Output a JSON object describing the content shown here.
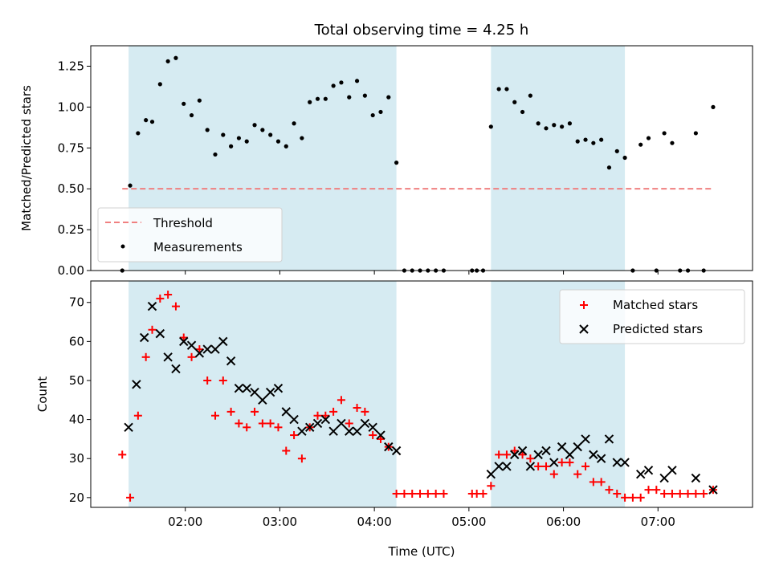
{
  "chart_data": [
    {
      "type": "scatter",
      "title": "Total observing time = 4.25 h",
      "ylabel": "Matched/Predicted stars",
      "xlabel": "",
      "ylim": [
        0,
        1.375
      ],
      "yticks": [
        0,
        0.25,
        0.5,
        0.75,
        1.0,
        1.25
      ],
      "ytick_labels": [
        "0.00",
        "0.25",
        "0.50",
        "0.75",
        "1.00",
        "1.25"
      ],
      "xticks": [
        "02:00",
        "03:00",
        "04:00",
        "05:00",
        "06:00",
        "07:00"
      ],
      "xtick_labels_visible": false,
      "legend": {
        "placement": "lower-left",
        "entries": [
          "Threshold",
          "Measurements"
        ]
      },
      "shaded_spans": [
        [
          "01:24",
          "04:14"
        ],
        [
          "05:14",
          "06:39"
        ]
      ],
      "threshold": {
        "name": "Threshold",
        "value": 0.5,
        "x_start": "01:20",
        "x_end": "07:35",
        "color": "#f08080"
      },
      "series": [
        {
          "name": "Measurements",
          "color": "#000000",
          "marker": "dot",
          "x": [
            "01:20",
            "01:25",
            "01:30",
            "01:35",
            "01:39",
            "01:44",
            "01:49",
            "01:54",
            "01:59",
            "02:04",
            "02:09",
            "02:14",
            "02:19",
            "02:24",
            "02:29",
            "02:34",
            "02:39",
            "02:44",
            "02:49",
            "02:54",
            "02:59",
            "03:04",
            "03:09",
            "03:14",
            "03:19",
            "03:24",
            "03:29",
            "03:34",
            "03:39",
            "03:44",
            "03:49",
            "03:54",
            "03:59",
            "04:04",
            "04:09",
            "04:14",
            "04:19",
            "04:24",
            "04:29",
            "04:34",
            "04:39",
            "04:44",
            "05:02",
            "05:05",
            "05:09",
            "05:14",
            "05:19",
            "05:24",
            "05:29",
            "05:34",
            "05:39",
            "05:44",
            "05:49",
            "05:54",
            "05:59",
            "06:04",
            "06:09",
            "06:14",
            "06:19",
            "06:24",
            "06:29",
            "06:34",
            "06:39",
            "06:44",
            "06:49",
            "06:54",
            "06:59",
            "07:04",
            "07:09",
            "07:14",
            "07:19",
            "07:24",
            "07:29",
            "07:35"
          ],
          "y": [
            0.0,
            0.52,
            0.84,
            0.92,
            0.91,
            1.14,
            1.28,
            1.3,
            1.02,
            0.95,
            1.04,
            0.86,
            0.71,
            0.83,
            0.76,
            0.81,
            0.79,
            0.89,
            0.86,
            0.83,
            0.79,
            0.76,
            0.9,
            0.81,
            1.03,
            1.05,
            1.05,
            1.13,
            1.15,
            1.06,
            1.16,
            1.07,
            0.95,
            0.97,
            1.06,
            0.66,
            0.0,
            0.0,
            0.0,
            0.0,
            0.0,
            0.0,
            0.0,
            0.0,
            0.0,
            0.88,
            1.11,
            1.11,
            1.03,
            0.97,
            1.07,
            0.9,
            0.87,
            0.89,
            0.88,
            0.9,
            0.79,
            0.8,
            0.78,
            0.8,
            0.63,
            0.73,
            0.69,
            0.0,
            0.77,
            0.81,
            0.0,
            0.84,
            0.78,
            0.0,
            0.0,
            0.84,
            0.0,
            1.0
          ]
        }
      ]
    },
    {
      "type": "scatter",
      "title": "",
      "ylabel": "Count",
      "xlabel": "Time (UTC)",
      "ylim": [
        17.5,
        75.5
      ],
      "yticks": [
        20,
        30,
        40,
        50,
        60,
        70
      ],
      "ytick_labels": [
        "20",
        "30",
        "40",
        "50",
        "60",
        "70"
      ],
      "xticks": [
        "02:00",
        "03:00",
        "04:00",
        "05:00",
        "06:00",
        "07:00"
      ],
      "xtick_labels": [
        "02:00",
        "03:00",
        "04:00",
        "05:00",
        "06:00",
        "07:00"
      ],
      "legend": {
        "placement": "upper-right",
        "entries": [
          "Matched stars",
          "Predicted stars"
        ]
      },
      "shaded_spans": [
        [
          "01:24",
          "04:14"
        ],
        [
          "05:14",
          "06:39"
        ]
      ],
      "series": [
        {
          "name": "Matched stars",
          "color": "#ff0000",
          "marker": "plus",
          "x": [
            "01:20",
            "01:25",
            "01:30",
            "01:35",
            "01:39",
            "01:44",
            "01:49",
            "01:54",
            "01:59",
            "02:04",
            "02:09",
            "02:14",
            "02:19",
            "02:24",
            "02:29",
            "02:34",
            "02:39",
            "02:44",
            "02:49",
            "02:54",
            "02:59",
            "03:04",
            "03:09",
            "03:14",
            "03:19",
            "03:24",
            "03:29",
            "03:34",
            "03:39",
            "03:44",
            "03:49",
            "03:54",
            "03:59",
            "04:04",
            "04:09",
            "04:14",
            "04:19",
            "04:24",
            "04:29",
            "04:34",
            "04:39",
            "04:44",
            "05:02",
            "05:05",
            "05:09",
            "05:14",
            "05:19",
            "05:24",
            "05:29",
            "05:34",
            "05:39",
            "05:44",
            "05:49",
            "05:54",
            "05:59",
            "06:04",
            "06:09",
            "06:14",
            "06:19",
            "06:24",
            "06:29",
            "06:34",
            "06:39",
            "06:44",
            "06:49",
            "06:54",
            "06:59",
            "07:04",
            "07:09",
            "07:14",
            "07:19",
            "07:24",
            "07:29",
            "07:35"
          ],
          "y": [
            31,
            20,
            41,
            56,
            63,
            71,
            72,
            69,
            61,
            56,
            58,
            50,
            41,
            50,
            42,
            39,
            38,
            42,
            39,
            39,
            38,
            32,
            36,
            30,
            38,
            41,
            41,
            42,
            45,
            39,
            43,
            42,
            36,
            35,
            33,
            21,
            21,
            21,
            21,
            21,
            21,
            21,
            21,
            21,
            21,
            23,
            31,
            31,
            32,
            31,
            30,
            28,
            28,
            26,
            29,
            29,
            26,
            28,
            24,
            24,
            22,
            21,
            20,
            20,
            20,
            22,
            22,
            21,
            21,
            21,
            21,
            21,
            21,
            22
          ]
        },
        {
          "name": "Predicted stars",
          "color": "#000000",
          "marker": "x",
          "x": [
            "01:24",
            "01:29",
            "01:34",
            "01:39",
            "01:44",
            "01:49",
            "01:54",
            "01:59",
            "02:04",
            "02:09",
            "02:14",
            "02:19",
            "02:24",
            "02:29",
            "02:34",
            "02:39",
            "02:44",
            "02:49",
            "02:54",
            "02:59",
            "03:04",
            "03:09",
            "03:14",
            "03:19",
            "03:24",
            "03:29",
            "03:34",
            "03:39",
            "03:44",
            "03:49",
            "03:54",
            "03:59",
            "04:04",
            "04:09",
            "04:14",
            "05:14",
            "05:19",
            "05:24",
            "05:29",
            "05:34",
            "05:39",
            "05:44",
            "05:49",
            "05:54",
            "05:59",
            "06:04",
            "06:09",
            "06:14",
            "06:19",
            "06:24",
            "06:29",
            "06:34",
            "06:39",
            "06:49",
            "06:54",
            "07:04",
            "07:09",
            "07:24",
            "07:35"
          ],
          "y": [
            38,
            49,
            61,
            69,
            62,
            56,
            53,
            60,
            59,
            57,
            58,
            58,
            60,
            55,
            48,
            48,
            47,
            45,
            47,
            48,
            42,
            40,
            37,
            38,
            39,
            40,
            37,
            39,
            37,
            37,
            39,
            38,
            36,
            33,
            32,
            26,
            28,
            28,
            31,
            32,
            28,
            31,
            32,
            29,
            33,
            31,
            33,
            35,
            31,
            30,
            35,
            29,
            29,
            26,
            27,
            25,
            27,
            25,
            22
          ]
        }
      ]
    }
  ]
}
